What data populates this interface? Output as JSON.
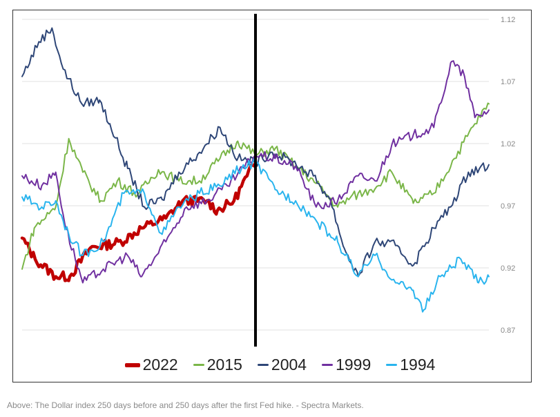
{
  "chart_data": {
    "type": "line",
    "title": "",
    "xlabel": "",
    "ylabel": "",
    "x_unit_description_shown": false,
    "xlim": [
      -250,
      250
    ],
    "ylim": [
      0.87,
      1.12
    ],
    "y_ticks": [
      "1.12",
      "1.07",
      "1.02",
      "0.97",
      "0.92",
      "0.87"
    ],
    "y_axis_side": "right",
    "grid": true,
    "vertical_marker_at": 0,
    "legend_placement": "bottom",
    "series": [
      {
        "name": "2022",
        "color": "#c00000",
        "width": 4.5,
        "points": [
          [
            -250,
            0.944
          ],
          [
            -236,
            0.927
          ],
          [
            -214,
            0.913
          ],
          [
            -199,
            0.913
          ],
          [
            -177,
            0.936
          ],
          [
            -144,
            0.941
          ],
          [
            -122,
            0.952
          ],
          [
            -96,
            0.96
          ],
          [
            -78,
            0.974
          ],
          [
            -52,
            0.974
          ],
          [
            -41,
            0.966
          ],
          [
            -23,
            0.974
          ],
          [
            -9,
            0.994
          ],
          [
            0,
            1.005
          ]
        ]
      },
      {
        "name": "2015",
        "color": "#7ab648",
        "width": 2,
        "points": [
          [
            -250,
            0.919
          ],
          [
            -237,
            0.952
          ],
          [
            -214,
            0.969
          ],
          [
            -200,
            1.024
          ],
          [
            -185,
            0.997
          ],
          [
            -166,
            0.974
          ],
          [
            -148,
            0.99
          ],
          [
            -126,
            0.979
          ],
          [
            -104,
            0.999
          ],
          [
            -82,
            0.99
          ],
          [
            -60,
            0.99
          ],
          [
            -38,
            1.008
          ],
          [
            -19,
            1.022
          ],
          [
            0,
            1.011
          ],
          [
            21,
            1.016
          ],
          [
            43,
            1.002
          ],
          [
            65,
            0.988
          ],
          [
            88,
            0.969
          ],
          [
            102,
            0.977
          ],
          [
            124,
            0.983
          ],
          [
            146,
            0.997
          ],
          [
            169,
            0.972
          ],
          [
            191,
            0.98
          ],
          [
            213,
            1.008
          ],
          [
            235,
            1.036
          ],
          [
            250,
            1.052
          ]
        ]
      },
      {
        "name": "2004",
        "color": "#2e4677",
        "width": 2,
        "points": [
          [
            -250,
            1.074
          ],
          [
            -232,
            1.102
          ],
          [
            -218,
            1.113
          ],
          [
            -206,
            1.08
          ],
          [
            -186,
            1.052
          ],
          [
            -167,
            1.055
          ],
          [
            -156,
            1.036
          ],
          [
            -137,
            1.0
          ],
          [
            -119,
            0.969
          ],
          [
            -100,
            0.975
          ],
          [
            -82,
            0.997
          ],
          [
            -60,
            1.013
          ],
          [
            -38,
            1.033
          ],
          [
            -19,
            1.008
          ],
          [
            0,
            1.005
          ],
          [
            18,
            1.013
          ],
          [
            40,
            1.005
          ],
          [
            62,
            0.994
          ],
          [
            80,
            0.975
          ],
          [
            95,
            0.936
          ],
          [
            110,
            0.913
          ],
          [
            128,
            0.941
          ],
          [
            150,
            0.938
          ],
          [
            169,
            0.922
          ],
          [
            191,
            0.952
          ],
          [
            209,
            0.969
          ],
          [
            228,
            0.997
          ],
          [
            250,
            1.003
          ]
        ]
      },
      {
        "name": "1999",
        "color": "#7030a0",
        "width": 2,
        "points": [
          [
            -250,
            0.994
          ],
          [
            -229,
            0.986
          ],
          [
            -214,
            0.997
          ],
          [
            -203,
            0.952
          ],
          [
            -185,
            0.908
          ],
          [
            -163,
            0.919
          ],
          [
            -137,
            0.93
          ],
          [
            -122,
            0.913
          ],
          [
            -96,
            0.941
          ],
          [
            -74,
            0.969
          ],
          [
            -52,
            0.974
          ],
          [
            -30,
            0.986
          ],
          [
            0,
            1.011
          ],
          [
            21,
            1.008
          ],
          [
            43,
            1.002
          ],
          [
            65,
            0.969
          ],
          [
            88,
            0.974
          ],
          [
            110,
            0.994
          ],
          [
            128,
            0.99
          ],
          [
            146,
            1.019
          ],
          [
            169,
            1.027
          ],
          [
            191,
            1.033
          ],
          [
            210,
            1.086
          ],
          [
            224,
            1.074
          ],
          [
            235,
            1.041
          ],
          [
            250,
            1.047
          ]
        ]
      },
      {
        "name": "1994",
        "color": "#29b4ee",
        "width": 2,
        "points": [
          [
            -250,
            0.977
          ],
          [
            -229,
            0.969
          ],
          [
            -214,
            0.974
          ],
          [
            -200,
            0.947
          ],
          [
            -185,
            0.93
          ],
          [
            -163,
            0.941
          ],
          [
            -141,
            0.98
          ],
          [
            -119,
            0.98
          ],
          [
            -100,
            0.947
          ],
          [
            -82,
            0.969
          ],
          [
            -60,
            0.98
          ],
          [
            -38,
            0.986
          ],
          [
            -19,
            0.999
          ],
          [
            0,
            1.005
          ],
          [
            21,
            0.983
          ],
          [
            43,
            0.974
          ],
          [
            65,
            0.958
          ],
          [
            88,
            0.941
          ],
          [
            110,
            0.913
          ],
          [
            128,
            0.93
          ],
          [
            150,
            0.908
          ],
          [
            169,
            0.902
          ],
          [
            180,
            0.886
          ],
          [
            198,
            0.913
          ],
          [
            220,
            0.927
          ],
          [
            239,
            0.908
          ],
          [
            250,
            0.913
          ]
        ]
      }
    ]
  },
  "caption": "Above: The Dollar index 250 days before and 250 days after the first Fed hike. - Spectra Markets."
}
